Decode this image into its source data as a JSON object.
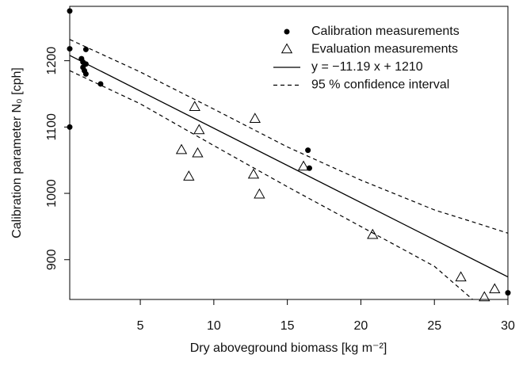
{
  "chart_data": {
    "type": "scatter",
    "xlabel": "Dry aboveground biomass [kg m⁻²]",
    "ylabel": "Calibration parameter N₀ [cph]",
    "xlim": [
      0.2,
      30
    ],
    "ylim": [
      840,
      1282
    ],
    "xticks": [
      5,
      10,
      15,
      20,
      25,
      30
    ],
    "yticks": [
      900,
      1000,
      1100,
      1200
    ],
    "legend": "top-right",
    "series": [
      {
        "name": "Calibration measurements",
        "style": "point",
        "color": "#000000",
        "x": [
          0.2,
          0.2,
          0.2,
          1.0,
          1.1,
          1.1,
          1.2,
          1.3,
          1.3,
          1.3,
          2.3,
          16.4,
          16.5,
          30
        ],
        "values": [
          1275,
          1218,
          1100,
          1203,
          1198,
          1190,
          1185,
          1217,
          1195,
          1180,
          1165,
          1065,
          1038,
          850
        ]
      },
      {
        "name": "Evaluation measurements",
        "style": "triangle",
        "color": "#000000",
        "x": [
          8.7,
          9.0,
          7.8,
          8.9,
          8.3,
          12.8,
          12.7,
          13.1,
          16.1,
          20.8,
          26.8,
          28.4,
          29.1
        ],
        "values": [
          1130,
          1095,
          1065,
          1060,
          1025,
          1112,
          1028,
          998,
          1040,
          937,
          873,
          843,
          855
        ]
      },
      {
        "name": "y = −11.19 x + 1210",
        "style": "line",
        "color": "#000000",
        "x": [
          0.2,
          30
        ],
        "values": [
          1208,
          874
        ]
      },
      {
        "name": "95 % confidence interval",
        "style": "dashed",
        "color": "#000000",
        "x": [
          0.2,
          5,
          10,
          15,
          20,
          25,
          27.6,
          30
        ],
        "lower": [
          1185,
          1135,
          1072,
          1010,
          950,
          890,
          840,
          null
        ],
        "upper": [
          1232,
          1183,
          1127,
          1070,
          1020,
          975,
          957,
          940
        ]
      }
    ]
  }
}
